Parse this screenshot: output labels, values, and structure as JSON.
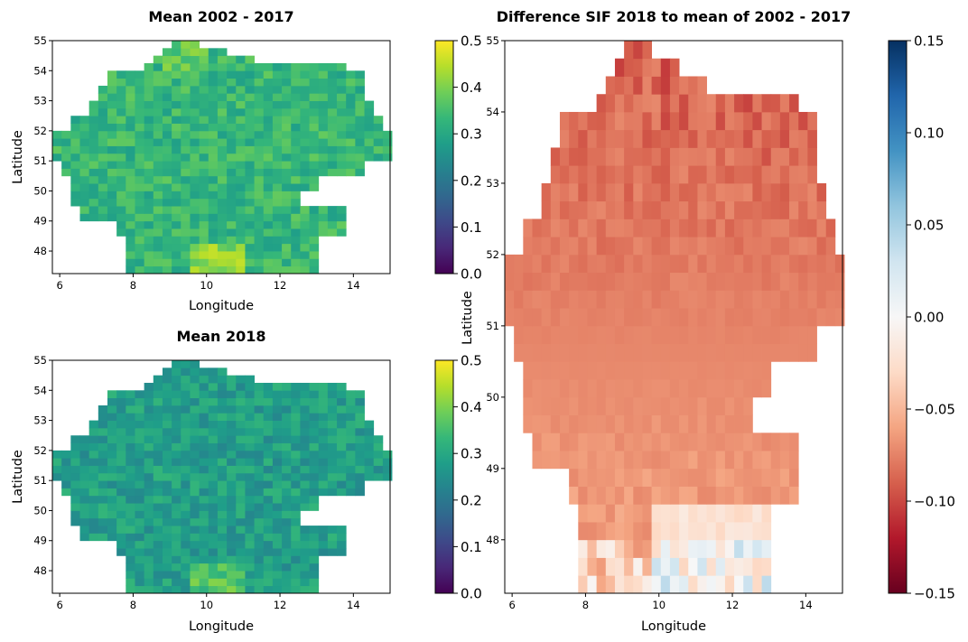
{
  "chart_data": [
    {
      "type": "heatmap",
      "title": "Mean 2002 - 2017",
      "xlabel": "Longitude",
      "ylabel": "Latitude",
      "xlim": [
        5.8,
        15.0
      ],
      "ylim": [
        47.25,
        55.0
      ],
      "xticks": [
        6,
        8,
        10,
        12,
        14
      ],
      "yticks": [
        48,
        49,
        50,
        51,
        52,
        53,
        54,
        55
      ],
      "colormap": "viridis",
      "clim": [
        0.0,
        0.5
      ],
      "colorbar_ticks": [
        "0.0",
        "0.1",
        "0.2",
        "0.3",
        "0.4",
        "0.5"
      ],
      "cell_size_deg": 0.25,
      "typical_value": 0.33,
      "value_range_observed": [
        0.25,
        0.47
      ]
    },
    {
      "type": "heatmap",
      "title": "Mean 2018",
      "xlabel": "Longitude",
      "ylabel": "Latitude",
      "xlim": [
        5.8,
        15.0
      ],
      "ylim": [
        47.25,
        55.0
      ],
      "xticks": [
        6,
        8,
        10,
        12,
        14
      ],
      "yticks": [
        48,
        49,
        50,
        51,
        52,
        53,
        54,
        55
      ],
      "colormap": "viridis",
      "clim": [
        0.0,
        0.5
      ],
      "colorbar_ticks": [
        "0.0",
        "0.1",
        "0.2",
        "0.3",
        "0.4",
        "0.5"
      ],
      "cell_size_deg": 0.25,
      "typical_value": 0.28,
      "value_range_observed": [
        0.2,
        0.42
      ]
    },
    {
      "type": "heatmap",
      "title": "Difference SIF 2018 to mean of 2002 - 2017",
      "xlabel": "Longitude",
      "ylabel": "Latitude",
      "xlim": [
        5.8,
        15.0
      ],
      "ylim": [
        47.25,
        55.0
      ],
      "xticks": [
        6,
        8,
        10,
        12,
        14
      ],
      "yticks": [
        48,
        49,
        50,
        51,
        52,
        53,
        54,
        55
      ],
      "colormap": "RdBu",
      "clim": [
        -0.15,
        0.15
      ],
      "colorbar_ticks": [
        "−0.15",
        "−0.10",
        "−0.05",
        "0.00",
        "0.05",
        "0.10",
        "0.15"
      ],
      "cell_size_deg": 0.25,
      "typical_value": -0.05,
      "value_range_observed": [
        -0.15,
        0.03
      ]
    }
  ],
  "colors": {
    "viridis": [
      "#440154",
      "#482878",
      "#3e4989",
      "#31688e",
      "#26828e",
      "#1f9e89",
      "#35b779",
      "#6ece58",
      "#b5de2b",
      "#fde725"
    ],
    "rdbu": [
      "#67001f",
      "#b2182b",
      "#d6604d",
      "#f4a582",
      "#fddbc7",
      "#f7f7f7",
      "#d1e5f0",
      "#92c5de",
      "#4393c3",
      "#2166ac",
      "#053061"
    ]
  }
}
